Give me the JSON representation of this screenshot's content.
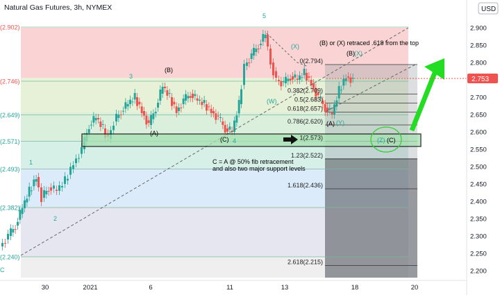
{
  "header": {
    "title": "Natural Gas Futures, 3h, NYMEX",
    "currency": "USD"
  },
  "colors": {
    "up": "#26a69a",
    "down": "#ef5350",
    "wave": "#26a69a",
    "price_tag": "#ef5350",
    "arrow": "#22dd22",
    "support_box": "#a5e0b0"
  },
  "chart_data": {
    "type": "candlestick",
    "title": "Natural Gas Futures, 3h, NYMEX",
    "ylim": [
      2.18,
      2.92
    ],
    "y_ticks": [
      "2.900",
      "2.850",
      "2.800",
      "2.750",
      "2.700",
      "2.650",
      "2.600",
      "2.550",
      "2.500",
      "2.450",
      "2.400",
      "2.350",
      "2.300",
      "2.250",
      "2.200"
    ],
    "x_ticks": [
      "30",
      "2021",
      "6",
      "11",
      "13",
      "18",
      "20"
    ],
    "last_price": "2.753",
    "fib_levels": [
      {
        "price": 2.902,
        "left_label": "(2.902)",
        "right_label": ""
      },
      {
        "price": 2.794,
        "left_label": "",
        "right_label": "0(2.794)"
      },
      {
        "price": 2.746,
        "left_label": "(2.746)",
        "right_label": ""
      },
      {
        "price": 2.709,
        "left_label": "",
        "right_label": "0.382(2.709)"
      },
      {
        "price": 2.683,
        "left_label": "",
        "right_label": "0.5(2.683)"
      },
      {
        "price": 2.657,
        "left_label": "",
        "right_label": "0.618(2.657)"
      },
      {
        "price": 2.649,
        "left_label": "(2.649)",
        "right_label": ""
      },
      {
        "price": 2.62,
        "left_label": "",
        "right_label": "0.786(2.620)"
      },
      {
        "price": 2.573,
        "left_label": "(2.571)",
        "right_label": "1(2.573)"
      },
      {
        "price": 2.522,
        "left_label": "",
        "right_label": "1.23(2.522)"
      },
      {
        "price": 2.493,
        "left_label": "(2.493)",
        "right_label": ""
      },
      {
        "price": 2.436,
        "left_label": "",
        "right_label": "1.618(2.436)"
      },
      {
        "price": 2.382,
        "left_label": "(2.382)",
        "right_label": ""
      },
      {
        "price": 2.24,
        "left_label": "(2.240)",
        "right_label": ""
      },
      {
        "price": 2.215,
        "left_label": "",
        "right_label": "2.618(2.215)"
      }
    ],
    "wave_labels": [
      "1",
      "2",
      "3",
      "(A)",
      "(B)",
      "(C)",
      "4",
      "5",
      "(X)",
      "(W)",
      "(A)",
      "(Y)",
      "(B)",
      "(X)",
      "(Z)",
      "(C)",
      "C"
    ],
    "annotations": [
      "(B) or (X) retraced .618 from the top",
      "C = A @ 50% fib retracement",
      "and also two major support levels"
    ]
  }
}
